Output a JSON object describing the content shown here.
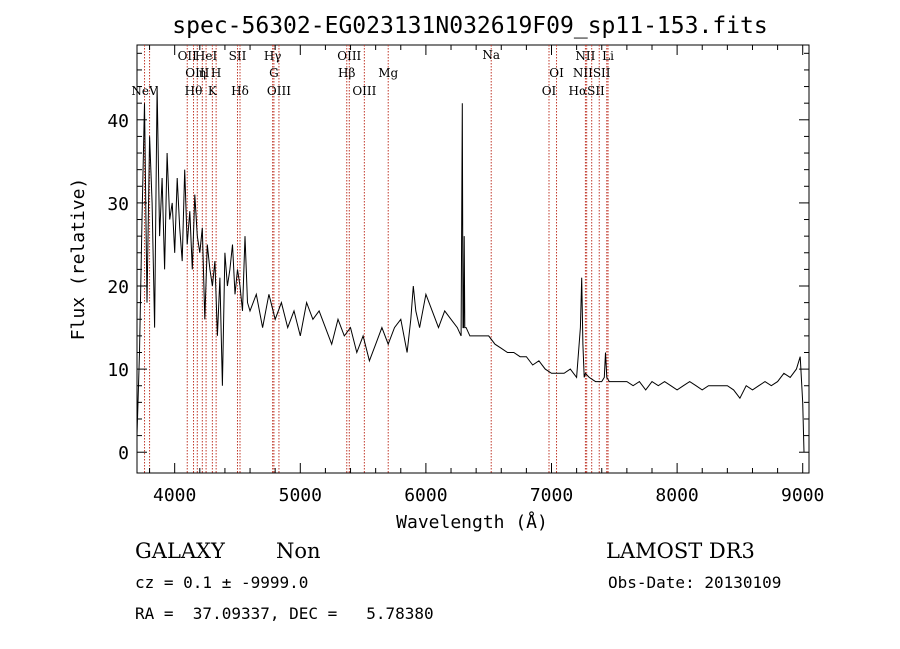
{
  "chart_data": {
    "type": "line",
    "title": "spec-56302-EG023131N032619F09_sp11-153.fits",
    "xlabel": "Wavelength (Å)",
    "ylabel": "Flux (relative)",
    "xlim": [
      3700,
      9050
    ],
    "ylim": [
      -2.5,
      49
    ],
    "xticks": [
      4000,
      5000,
      6000,
      7000,
      8000,
      9000
    ],
    "yticks": [
      0,
      10,
      20,
      30,
      40
    ],
    "grid": false,
    "line_color": "#000000",
    "marker_color": "#c0392b",
    "series": [
      {
        "name": "flux",
        "x": [
          3700,
          3720,
          3740,
          3760,
          3780,
          3800,
          3820,
          3840,
          3860,
          3880,
          3900,
          3920,
          3940,
          3960,
          3980,
          4000,
          4020,
          4040,
          4060,
          4080,
          4100,
          4120,
          4140,
          4160,
          4180,
          4200,
          4220,
          4240,
          4260,
          4280,
          4300,
          4320,
          4340,
          4360,
          4380,
          4400,
          4420,
          4440,
          4460,
          4480,
          4500,
          4520,
          4540,
          4560,
          4580,
          4600,
          4650,
          4700,
          4750,
          4800,
          4850,
          4900,
          4950,
          5000,
          5050,
          5100,
          5150,
          5200,
          5250,
          5300,
          5350,
          5400,
          5450,
          5500,
          5550,
          5600,
          5650,
          5700,
          5750,
          5800,
          5850,
          5880,
          5900,
          5920,
          5950,
          6000,
          6050,
          6100,
          6150,
          6200,
          6250,
          6280,
          6290,
          6295,
          6300,
          6305,
          6310,
          6320,
          6350,
          6400,
          6450,
          6500,
          6550,
          6600,
          6650,
          6700,
          6750,
          6800,
          6850,
          6900,
          6950,
          7000,
          7050,
          7100,
          7150,
          7200,
          7230,
          7240,
          7250,
          7260,
          7270,
          7300,
          7350,
          7400,
          7420,
          7430,
          7440,
          7460,
          7500,
          7550,
          7600,
          7650,
          7700,
          7750,
          7800,
          7850,
          7900,
          7950,
          8000,
          8050,
          8100,
          8150,
          8200,
          8250,
          8300,
          8350,
          8400,
          8450,
          8500,
          8550,
          8600,
          8650,
          8700,
          8750,
          8800,
          8850,
          8900,
          8950,
          8980,
          9000,
          9010
        ],
        "values": [
          2,
          12,
          28,
          42,
          18,
          38,
          30,
          15,
          44,
          26,
          33,
          22,
          36,
          28,
          30,
          24,
          33,
          27,
          23,
          34,
          25,
          29,
          22,
          31,
          26,
          24,
          27,
          16,
          25,
          22,
          20,
          23,
          14,
          21,
          8,
          24,
          20,
          22,
          25,
          19,
          22,
          20,
          17,
          26,
          18,
          17,
          19,
          15,
          19,
          16,
          18,
          15,
          17,
          14,
          18,
          16,
          17,
          15,
          13,
          16,
          14,
          15,
          12,
          14,
          11,
          13,
          15,
          13,
          15,
          16,
          12,
          16,
          20,
          17,
          15,
          19,
          17,
          15,
          17,
          16,
          15,
          14,
          42,
          15,
          15,
          26,
          15,
          15,
          14,
          14,
          14,
          14,
          13,
          12.5,
          12,
          12,
          11.5,
          11.5,
          10.5,
          11,
          10,
          9.5,
          9.5,
          9.5,
          10,
          9,
          15,
          21,
          13,
          9,
          9.5,
          9,
          8.5,
          8.5,
          9,
          12,
          9,
          8.5,
          8.5,
          8.5,
          8.5,
          8,
          8.5,
          7.5,
          8.5,
          8,
          8.5,
          8,
          7.5,
          8,
          8.5,
          8,
          7.5,
          8,
          8,
          8,
          8,
          7.5,
          6.5,
          8,
          7.5,
          8,
          8.5,
          8,
          8.5,
          9.5,
          9,
          10,
          11.5,
          6,
          0
        ]
      }
    ],
    "line_markers": [
      {
        "wl": 3760,
        "label": "NeV",
        "row": 4
      },
      {
        "wl": 3800,
        "label": "",
        "row": 0
      },
      {
        "wl": 4100,
        "label": "OII",
        "row": 1
      },
      {
        "wl": 4180,
        "label": "OIII",
        "row": 2
      },
      {
        "wl": 4150,
        "label": "Hθ",
        "row": 3
      },
      {
        "wl": 4250,
        "label": "HeI",
        "row": 1
      },
      {
        "wl": 4220,
        "label": "η",
        "row": 2
      },
      {
        "wl": 4330,
        "label": "H",
        "row": 2
      },
      {
        "wl": 4300,
        "label": "K",
        "row": 3
      },
      {
        "wl": 4500,
        "label": "SII",
        "row": 1
      },
      {
        "wl": 4520,
        "label": "Hδ",
        "row": 3
      },
      {
        "wl": 4780,
        "label": "Hγ",
        "row": 1
      },
      {
        "wl": 4790,
        "label": "G",
        "row": 2
      },
      {
        "wl": 4830,
        "label": "OIII",
        "row": 3
      },
      {
        "wl": 5390,
        "label": "OIII",
        "row": 1
      },
      {
        "wl": 5370,
        "label": "Hβ",
        "row": 2
      },
      {
        "wl": 5510,
        "label": "OIII",
        "row": 3
      },
      {
        "wl": 5700,
        "label": "Mg",
        "row": 2
      },
      {
        "wl": 6520,
        "label": "Na",
        "row": 0
      },
      {
        "wl": 7040,
        "label": "OI",
        "row": 2
      },
      {
        "wl": 6980,
        "label": "OI",
        "row": 3
      },
      {
        "wl": 7270,
        "label": "NII",
        "row": 1
      },
      {
        "wl": 7320,
        "label": "NIISII",
        "row": 2
      },
      {
        "wl": 7280,
        "label": "HαSII",
        "row": 3
      },
      {
        "wl": 7450,
        "label": "Li",
        "row": 1
      },
      {
        "wl": 7380,
        "label": "",
        "row": 0
      },
      {
        "wl": 7440,
        "label": "",
        "row": 0
      }
    ]
  },
  "footer": {
    "class_label": "GALAXY",
    "subclass_label": "Non",
    "survey": "LAMOST DR3",
    "cz": "cz = 0.1 ± -9999.0",
    "obs_date": "Obs-Date: 20130109",
    "radec": "RA =  37.09337, DEC =   5.78380"
  }
}
